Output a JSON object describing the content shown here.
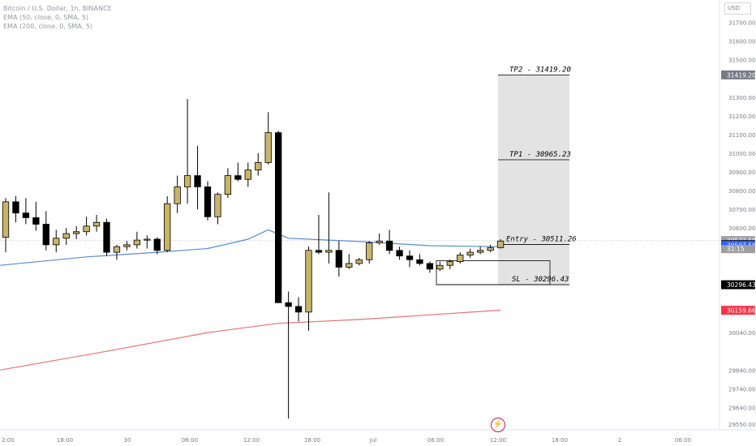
{
  "header": {
    "symbol": "Bitcoin / U.S. Dollar, 1h, BINANCE",
    "indicators": [
      "EMA (50, close, 0, SMA, 5)",
      "EMA (200, close, 0, SMA, 5)"
    ],
    "currency": "USD"
  },
  "colors": {
    "bull": "#c8b46a",
    "bear": "#000000",
    "ema50": "#5b8bd6",
    "ema200": "#e57373",
    "zone": "#d9d9d9",
    "last_price": "#9e9e9e",
    "ema50_label": "#2962ff",
    "ema200_label": "#f23645",
    "tp2_label": "#787b86",
    "sl_label": "#000000"
  },
  "chart_data": {
    "type": "candlestick",
    "ylim": [
      29520,
      31820
    ],
    "y_ticks": [
      "31700.00",
      "31600.00",
      "31500.00",
      "31300.00",
      "31200.00",
      "31100.00",
      "31000.00",
      "30900.00",
      "30800.00",
      "30700.00",
      "30600.00",
      "30040.00",
      "29840.00",
      "29740.00",
      "29640.00",
      "29550.00"
    ],
    "y_tick_values": [
      31700,
      31600,
      31500,
      31300,
      31200,
      31100,
      31000,
      30900,
      30800,
      30700,
      30600,
      30040,
      29840,
      29740,
      29640,
      29550
    ],
    "x_ticks": [
      "2:00",
      "18:00",
      "30",
      "06:00",
      "12:00",
      "18:00",
      "Jul",
      "06:00",
      "12:00",
      "18:00",
      "2",
      "06:00"
    ],
    "candles": [
      {
        "o": 30550,
        "h": 30760,
        "l": 30470,
        "c": 30740
      },
      {
        "o": 30740,
        "h": 30770,
        "l": 30630,
        "c": 30680
      },
      {
        "o": 30680,
        "h": 30760,
        "l": 30620,
        "c": 30655
      },
      {
        "o": 30655,
        "h": 30740,
        "l": 30585,
        "c": 30620
      },
      {
        "o": 30620,
        "h": 30690,
        "l": 30480,
        "c": 30510
      },
      {
        "o": 30510,
        "h": 30590,
        "l": 30470,
        "c": 30545
      },
      {
        "o": 30545,
        "h": 30600,
        "l": 30510,
        "c": 30570
      },
      {
        "o": 30570,
        "h": 30610,
        "l": 30540,
        "c": 30580
      },
      {
        "o": 30580,
        "h": 30660,
        "l": 30560,
        "c": 30610
      },
      {
        "o": 30610,
        "h": 30670,
        "l": 30580,
        "c": 30630
      },
      {
        "o": 30630,
        "h": 30650,
        "l": 30450,
        "c": 30470
      },
      {
        "o": 30470,
        "h": 30510,
        "l": 30430,
        "c": 30500
      },
      {
        "o": 30500,
        "h": 30530,
        "l": 30480,
        "c": 30510
      },
      {
        "o": 30510,
        "h": 30580,
        "l": 30490,
        "c": 30535
      },
      {
        "o": 30535,
        "h": 30560,
        "l": 30490,
        "c": 30540
      },
      {
        "o": 30540,
        "h": 30550,
        "l": 30460,
        "c": 30480
      },
      {
        "o": 30480,
        "h": 30770,
        "l": 30470,
        "c": 30730
      },
      {
        "o": 30730,
        "h": 30880,
        "l": 30680,
        "c": 30820
      },
      {
        "o": 30820,
        "h": 31290,
        "l": 30730,
        "c": 30880
      },
      {
        "o": 30880,
        "h": 31040,
        "l": 30700,
        "c": 30820
      },
      {
        "o": 30820,
        "h": 30850,
        "l": 30640,
        "c": 30660
      },
      {
        "o": 30660,
        "h": 30790,
        "l": 30620,
        "c": 30780
      },
      {
        "o": 30780,
        "h": 30920,
        "l": 30760,
        "c": 30880
      },
      {
        "o": 30880,
        "h": 30950,
        "l": 30850,
        "c": 30860
      },
      {
        "o": 30860,
        "h": 30950,
        "l": 30820,
        "c": 30910
      },
      {
        "o": 30910,
        "h": 31000,
        "l": 30880,
        "c": 30950
      },
      {
        "o": 30950,
        "h": 31220,
        "l": 30940,
        "c": 31110
      },
      {
        "o": 31110,
        "h": 31120,
        "l": 30200,
        "c": 30200
      },
      {
        "o": 30200,
        "h": 30260,
        "l": 29580,
        "c": 30180
      },
      {
        "o": 30180,
        "h": 30230,
        "l": 30100,
        "c": 30150
      },
      {
        "o": 30150,
        "h": 30500,
        "l": 30050,
        "c": 30480
      },
      {
        "o": 30480,
        "h": 30670,
        "l": 30460,
        "c": 30470
      },
      {
        "o": 30470,
        "h": 30790,
        "l": 30410,
        "c": 30480
      },
      {
        "o": 30480,
        "h": 30530,
        "l": 30340,
        "c": 30390
      },
      {
        "o": 30390,
        "h": 30460,
        "l": 30380,
        "c": 30410
      },
      {
        "o": 30410,
        "h": 30440,
        "l": 30400,
        "c": 30430
      },
      {
        "o": 30430,
        "h": 30530,
        "l": 30410,
        "c": 30520
      },
      {
        "o": 30520,
        "h": 30570,
        "l": 30510,
        "c": 30530
      },
      {
        "o": 30530,
        "h": 30590,
        "l": 30460,
        "c": 30480
      },
      {
        "o": 30480,
        "h": 30500,
        "l": 30430,
        "c": 30450
      },
      {
        "o": 30450,
        "h": 30480,
        "l": 30390,
        "c": 30430
      },
      {
        "o": 30430,
        "h": 30460,
        "l": 30400,
        "c": 30410
      },
      {
        "o": 30410,
        "h": 30420,
        "l": 30360,
        "c": 30380
      },
      {
        "o": 30380,
        "h": 30420,
        "l": 30370,
        "c": 30400
      },
      {
        "o": 30400,
        "h": 30430,
        "l": 30380,
        "c": 30420
      },
      {
        "o": 30420,
        "h": 30470,
        "l": 30410,
        "c": 30455
      },
      {
        "o": 30455,
        "h": 30490,
        "l": 30440,
        "c": 30470
      },
      {
        "o": 30470,
        "h": 30500,
        "l": 30460,
        "c": 30480
      },
      {
        "o": 30480,
        "h": 30510,
        "l": 30470,
        "c": 30495
      },
      {
        "o": 30495,
        "h": 30540,
        "l": 30490,
        "c": 30530
      }
    ],
    "ema50": [
      {
        "x": 0,
        "y": 30400
      },
      {
        "x": 8,
        "y": 30445
      },
      {
        "x": 15,
        "y": 30470
      },
      {
        "x": 20,
        "y": 30490
      },
      {
        "x": 24,
        "y": 30540
      },
      {
        "x": 26,
        "y": 30590
      },
      {
        "x": 28,
        "y": 30545
      },
      {
        "x": 36,
        "y": 30525
      },
      {
        "x": 42,
        "y": 30505
      },
      {
        "x": 49,
        "y": 30500
      }
    ],
    "ema200": [
      {
        "x": 0,
        "y": 29840
      },
      {
        "x": 10,
        "y": 29940
      },
      {
        "x": 20,
        "y": 30040
      },
      {
        "x": 27,
        "y": 30090
      },
      {
        "x": 35,
        "y": 30110
      },
      {
        "x": 49,
        "y": 30160
      }
    ],
    "targets": [
      {
        "label": "TP2 - 31419.20",
        "value": 31419.2
      },
      {
        "label": "TP1 - 30965.23",
        "value": 30965.23
      },
      {
        "label": "Entry - 30511.26",
        "value": 30511.26
      },
      {
        "label": "SL - 30296.43",
        "value": 30296.43
      }
    ],
    "sl_box": {
      "top": 30425,
      "bottom": 30296.43
    },
    "price_labels": [
      {
        "text": "31419.20",
        "value": 31419.2,
        "color_key": "tp2_label"
      },
      {
        "text": "30532.59",
        "value": 30532.59,
        "color_key": "last_price"
      },
      {
        "text": "30511.26",
        "value": 30511.26,
        "color_key": "sl_label"
      },
      {
        "text": "30507.58",
        "value": 30507.58,
        "color_key": "ema50_label"
      },
      {
        "text": "30296.43",
        "value": 30296.43,
        "color_key": "sl_label"
      },
      {
        "text": "30159.66",
        "value": 30159.66,
        "color_key": "ema200_label"
      }
    ],
    "countdown": "31:15"
  }
}
